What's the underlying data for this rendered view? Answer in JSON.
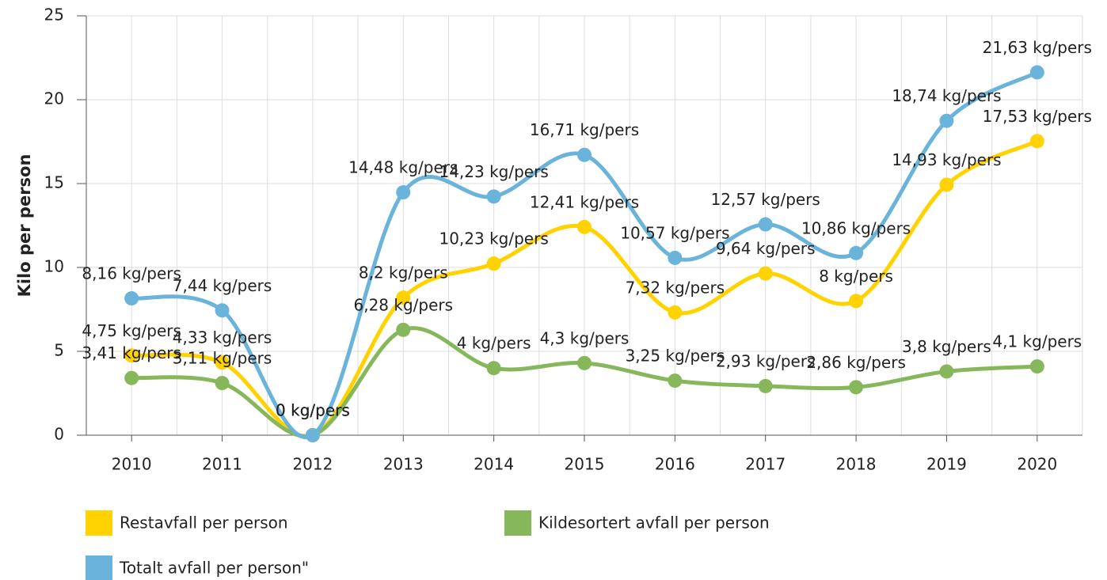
{
  "chart_data": {
    "type": "line",
    "y_label": "Kilo per person",
    "categories": [
      "2010",
      "2011",
      "2012",
      "2013",
      "2014",
      "2015",
      "2016",
      "2017",
      "2018",
      "2019",
      "2020"
    ],
    "ylim": [
      0,
      25
    ],
    "yticks": [
      0,
      5,
      10,
      15,
      20,
      25
    ],
    "grid": true,
    "smooth": true,
    "legend": "bottom",
    "series": [
      {
        "name": "Restavfall per person",
        "color": "#ffd200",
        "values": [
          4.75,
          4.33,
          0,
          8.2,
          10.23,
          12.41,
          7.32,
          9.64,
          8,
          14.93,
          17.53
        ],
        "value_labels": [
          "4,75 kg/pers",
          "4,33 kg/pers",
          "0 kg/pers",
          "8,2 kg/pers",
          "10,23 kg/pers",
          "12,41 kg/pers",
          "7,32 kg/pers",
          "9,64 kg/pers",
          "8 kg/pers",
          "14,93 kg/pers",
          "17,53 kg/pers"
        ]
      },
      {
        "name": "Kildesortert avfall per person",
        "color": "#86b75a",
        "values": [
          3.41,
          3.11,
          0,
          6.28,
          4,
          4.3,
          3.25,
          2.93,
          2.86,
          3.8,
          4.1
        ],
        "value_labels": [
          "3,41 kg/pers",
          "3,11 kg/pers",
          "0 kg/pers",
          "6,28 kg/pers",
          "4 kg/pers",
          "4,3 kg/pers",
          "3,25 kg/pers",
          "2,93 kg/pers",
          "2,86 kg/pers",
          "3,8 kg/pers",
          "4,1 kg/pers"
        ]
      },
      {
        "name": "Totalt avfall per person\"",
        "color": "#6ab4dc",
        "values": [
          8.16,
          7.44,
          0,
          14.48,
          14.23,
          16.71,
          10.57,
          12.57,
          10.86,
          18.74,
          21.63
        ],
        "value_labels": [
          "8,16 kg/pers",
          "7,44 kg/pers",
          "0 kg/pers",
          "14,48 kg/pers",
          "14,23 kg/pers",
          "16,71 kg/pers",
          "10,57 kg/pers",
          "12,57 kg/pers",
          "10,86 kg/pers",
          "18,74 kg/pers",
          "21,63 kg/pers"
        ]
      }
    ]
  }
}
